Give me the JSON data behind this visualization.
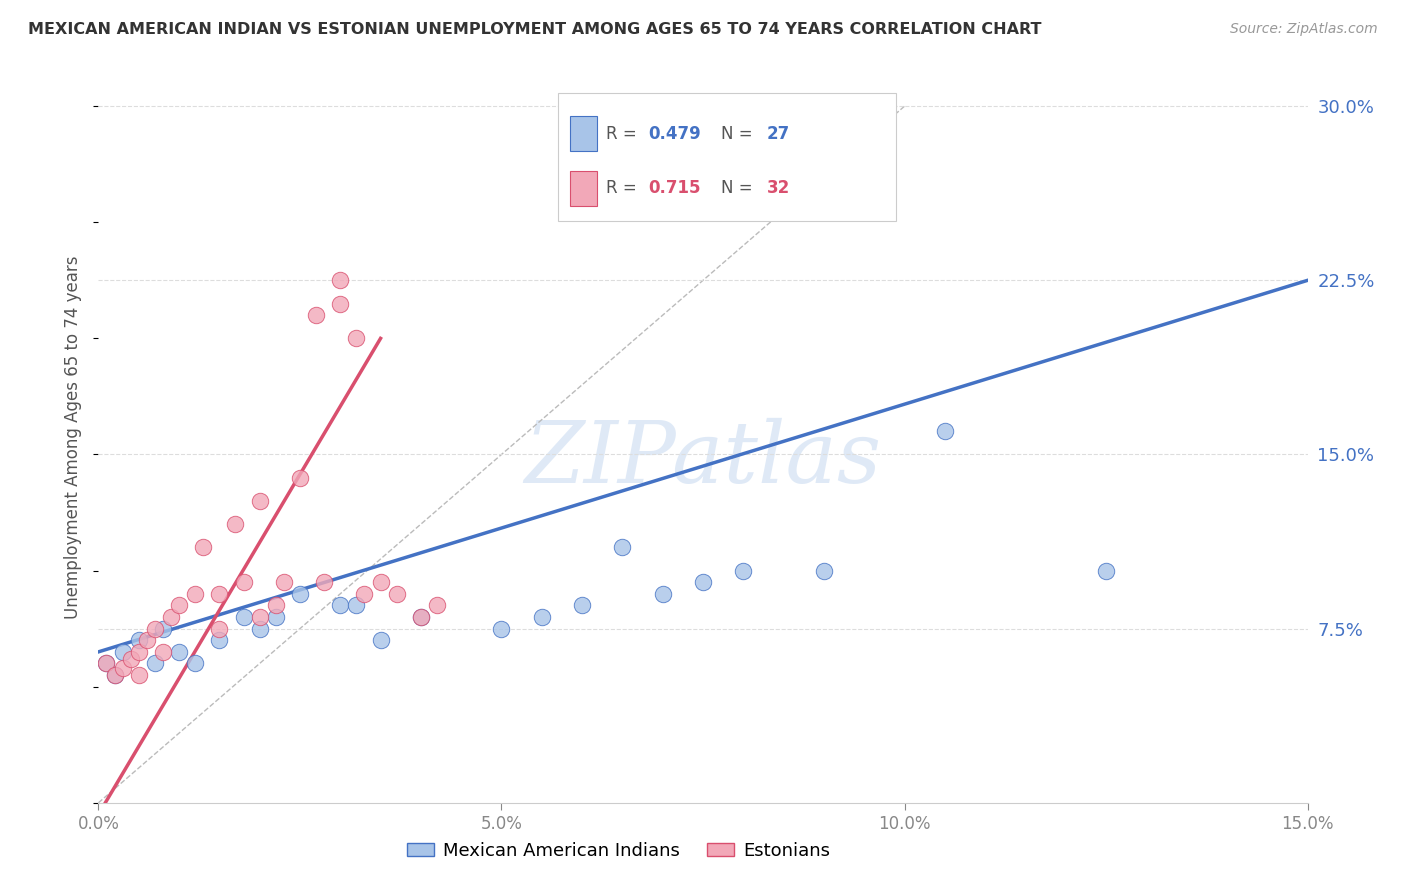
{
  "title": "MEXICAN AMERICAN INDIAN VS ESTONIAN UNEMPLOYMENT AMONG AGES 65 TO 74 YEARS CORRELATION CHART",
  "source": "Source: ZipAtlas.com",
  "ylabel": "Unemployment Among Ages 65 to 74 years",
  "xlim": [
    0,
    0.15
  ],
  "ylim": [
    0.0,
    0.315
  ],
  "yticks": [
    0.075,
    0.15,
    0.225,
    0.3
  ],
  "xticks": [
    0.0,
    0.05,
    0.1,
    0.15
  ],
  "legend_r_blue": "0.479",
  "legend_n_blue": "27",
  "legend_r_pink": "0.715",
  "legend_n_pink": "32",
  "blue_color": "#A8C4E8",
  "pink_color": "#F2A8B8",
  "blue_line_color": "#4472C4",
  "pink_line_color": "#D94F6E",
  "watermark": "ZIPatlas",
  "blue_x": [
    0.001,
    0.002,
    0.003,
    0.005,
    0.007,
    0.008,
    0.01,
    0.012,
    0.015,
    0.018,
    0.02,
    0.022,
    0.025,
    0.03,
    0.032,
    0.035,
    0.04,
    0.05,
    0.055,
    0.06,
    0.065,
    0.07,
    0.075,
    0.08,
    0.09,
    0.105,
    0.125
  ],
  "blue_y": [
    0.06,
    0.055,
    0.065,
    0.07,
    0.06,
    0.075,
    0.065,
    0.06,
    0.07,
    0.08,
    0.075,
    0.08,
    0.09,
    0.085,
    0.085,
    0.07,
    0.08,
    0.075,
    0.08,
    0.085,
    0.11,
    0.09,
    0.095,
    0.1,
    0.1,
    0.16,
    0.1
  ],
  "pink_x": [
    0.001,
    0.002,
    0.003,
    0.004,
    0.005,
    0.005,
    0.006,
    0.007,
    0.008,
    0.009,
    0.01,
    0.012,
    0.013,
    0.015,
    0.015,
    0.017,
    0.018,
    0.02,
    0.02,
    0.022,
    0.023,
    0.025,
    0.027,
    0.028,
    0.03,
    0.03,
    0.032,
    0.033,
    0.035,
    0.037,
    0.04,
    0.042
  ],
  "pink_y": [
    0.06,
    0.055,
    0.058,
    0.062,
    0.055,
    0.065,
    0.07,
    0.075,
    0.065,
    0.08,
    0.085,
    0.09,
    0.11,
    0.075,
    0.09,
    0.12,
    0.095,
    0.08,
    0.13,
    0.085,
    0.095,
    0.14,
    0.21,
    0.095,
    0.215,
    0.225,
    0.2,
    0.09,
    0.095,
    0.09,
    0.08,
    0.085
  ],
  "blue_trend_x": [
    0.0,
    0.15
  ],
  "blue_trend_y": [
    0.065,
    0.225
  ],
  "pink_trend_x": [
    0.0,
    0.035
  ],
  "pink_trend_y": [
    -0.005,
    0.2
  ],
  "ref_line_x": [
    0.0,
    0.1
  ],
  "ref_line_y": [
    0.0,
    0.3
  ]
}
